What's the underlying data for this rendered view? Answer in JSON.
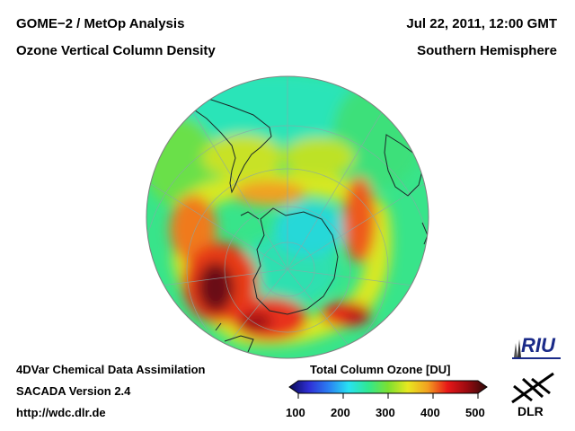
{
  "header": {
    "title_left_1": "GOME−2 / MetOp Analysis",
    "title_left_2": "Ozone Vertical Column Density",
    "title_right_1": "Jul 22, 2011, 12:00 GMT",
    "title_right_2": "Southern Hemisphere"
  },
  "footer": {
    "line1": "4DVar Chemical Data Assimilation",
    "line2": "SACADA Version 2.4",
    "line3": "http://wdc.dlr.de"
  },
  "colorbar": {
    "title": "Total Column Ozone [DU]",
    "ticks": [
      "100",
      "200",
      "300",
      "400",
      "500"
    ],
    "stops": [
      "#0a0a55",
      "#2f2fd6",
      "#2a80f2",
      "#28e2f2",
      "#30e890",
      "#7ce030",
      "#e8e820",
      "#f2a020",
      "#e81818",
      "#9a0a10",
      "#2b0a0a"
    ]
  },
  "logos": {
    "riu": "RIU",
    "dlr": "DLR"
  }
}
